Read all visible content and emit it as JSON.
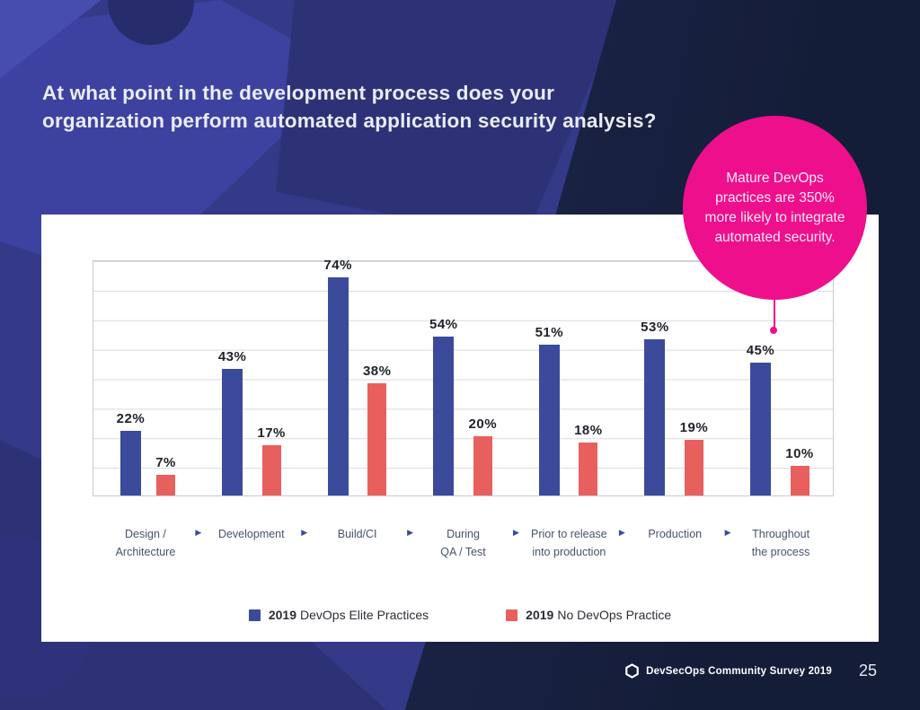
{
  "page": {
    "title_lines": {
      "0": "At what point in the development process does your",
      "1": "organization perform automated application security analysis?"
    },
    "footer": {
      "brand": "DevSecOps Community Survey 2019",
      "page_number": "25",
      "logo_icon": "hexagon-outline-icon"
    }
  },
  "callout": {
    "lines": {
      "0": "Mature DevOps",
      "1": "practices are 350%",
      "2": "more likely to integrate",
      "3": "automated security."
    },
    "color": "#ee0f8c"
  },
  "legend": {
    "items": [
      {
        "year": "2019",
        "label": "DevOps Elite Practices",
        "color": "#3b4a9b"
      },
      {
        "year": "2019",
        "label": "No DevOps Practice",
        "color": "#e8605e"
      }
    ]
  },
  "icons": {
    "flow_arrow": "▶"
  },
  "colors": {
    "accent_pink": "#ee0f8c",
    "elite_blue": "#3b4a9b",
    "no_devops_red": "#e8605e"
  },
  "chart_data": {
    "type": "bar",
    "title": "",
    "xlabel": "",
    "ylabel": "",
    "categories": [
      "Design / Architecture",
      "Development",
      "Build/CI",
      "During QA / Test",
      "Prior to release into production",
      "Production",
      "Throughout the process"
    ],
    "category_lines": [
      [
        "Design /",
        "Architecture"
      ],
      [
        "Development"
      ],
      [
        "Build/CI"
      ],
      [
        "During",
        "QA / Test"
      ],
      [
        "Prior to release",
        "into production"
      ],
      [
        "Production"
      ],
      [
        "Throughout",
        "the process"
      ]
    ],
    "series": [
      {
        "name": "2019 DevOps Elite Practices",
        "color": "#3b4a9b",
        "values": [
          22,
          43,
          74,
          54,
          51,
          53,
          45
        ]
      },
      {
        "name": "2019 No DevOps Practice",
        "color": "#e8605e",
        "values": [
          7,
          17,
          38,
          20,
          18,
          19,
          10
        ]
      }
    ],
    "ylim": [
      0,
      80
    ],
    "grid": true,
    "gridline_interval": 10,
    "value_label_suffix": "%",
    "legend_position": "bottom"
  }
}
